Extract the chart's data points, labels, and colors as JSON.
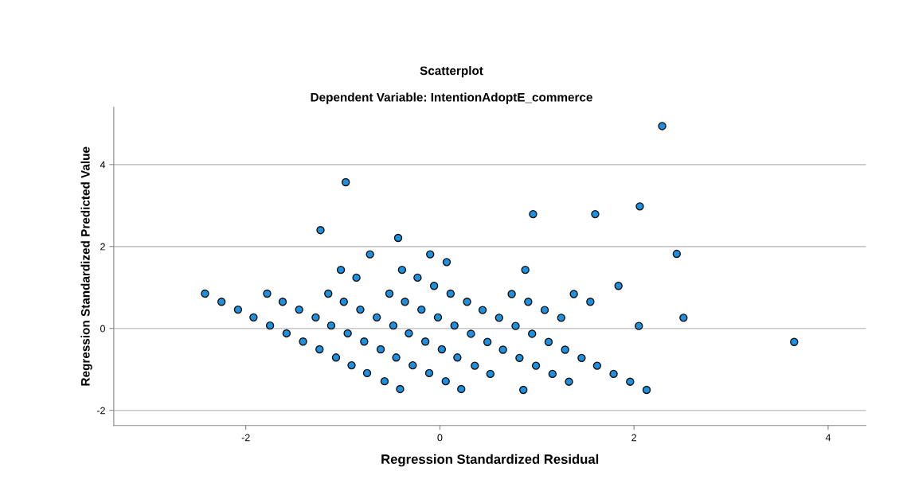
{
  "chart_data": {
    "type": "scatter",
    "title": "Scatterplot",
    "subtitle": "Dependent Variable: IntentionAdoptE_commerce",
    "xlabel": "Regression Standardized Residual",
    "ylabel": "Regression Standardized Predicted Value",
    "xlim": [
      -3.36,
      4.39
    ],
    "ylim": [
      -2.37,
      5.4
    ],
    "xticks": [
      -2,
      0,
      2,
      4
    ],
    "yticks": [
      -2,
      0,
      2,
      4
    ],
    "grid": "y",
    "marker": "circle",
    "legend": false,
    "series": [
      {
        "color": "#1e90e0",
        "x": [
          -0.97,
          -1.23,
          -0.43,
          -0.72,
          -0.1,
          0.07,
          -1.02,
          -0.39,
          -0.86,
          -0.23,
          -0.06,
          -2.42,
          -1.78,
          -1.15,
          -0.52,
          0.11,
          -2.25,
          -1.62,
          -0.99,
          -0.36,
          -2.08,
          -1.45,
          -0.82,
          -0.19,
          -1.92,
          -1.28,
          -0.65,
          -0.02,
          -1.75,
          -1.12,
          -0.48,
          0.15,
          -1.58,
          -0.95,
          -0.32,
          -1.41,
          -0.78,
          -0.15,
          -1.24,
          -0.61,
          0.02,
          -1.07,
          -0.45,
          0.18,
          -0.91,
          -0.28,
          -0.75,
          -0.11,
          -0.57,
          0.06,
          -0.41,
          0.22,
          2.29,
          0.96,
          1.6,
          2.06,
          2.44,
          0.88,
          1.84,
          0.74,
          1.38,
          0.28,
          0.91,
          1.55,
          0.44,
          1.08,
          0.61,
          1.25,
          2.51,
          0.78,
          2.05,
          0.32,
          0.95,
          0.49,
          1.12,
          3.65,
          0.65,
          1.29,
          0.82,
          1.46,
          0.36,
          0.99,
          1.62,
          0.52,
          1.16,
          1.79,
          1.33,
          1.96,
          0.86,
          2.13
        ],
        "values": [
          3.57,
          2.4,
          2.21,
          1.81,
          1.81,
          1.62,
          1.43,
          1.43,
          1.24,
          1.24,
          1.04,
          0.85,
          0.85,
          0.85,
          0.85,
          0.85,
          0.65,
          0.65,
          0.65,
          0.65,
          0.46,
          0.46,
          0.46,
          0.46,
          0.27,
          0.27,
          0.27,
          0.27,
          0.07,
          0.07,
          0.07,
          0.07,
          -0.12,
          -0.12,
          -0.12,
          -0.32,
          -0.32,
          -0.32,
          -0.51,
          -0.51,
          -0.51,
          -0.71,
          -0.71,
          -0.71,
          -0.9,
          -0.9,
          -1.09,
          -1.09,
          -1.29,
          -1.29,
          -1.48,
          -1.48,
          4.94,
          2.79,
          2.79,
          2.98,
          1.82,
          1.43,
          1.04,
          0.84,
          0.84,
          0.65,
          0.65,
          0.65,
          0.45,
          0.45,
          0.26,
          0.26,
          0.26,
          0.06,
          0.06,
          -0.13,
          -0.13,
          -0.33,
          -0.33,
          -0.33,
          -0.52,
          -0.52,
          -0.72,
          -0.72,
          -0.91,
          -0.91,
          -0.91,
          -1.11,
          -1.11,
          -1.11,
          -1.3,
          -1.3,
          -1.5,
          -1.5
        ]
      }
    ]
  }
}
